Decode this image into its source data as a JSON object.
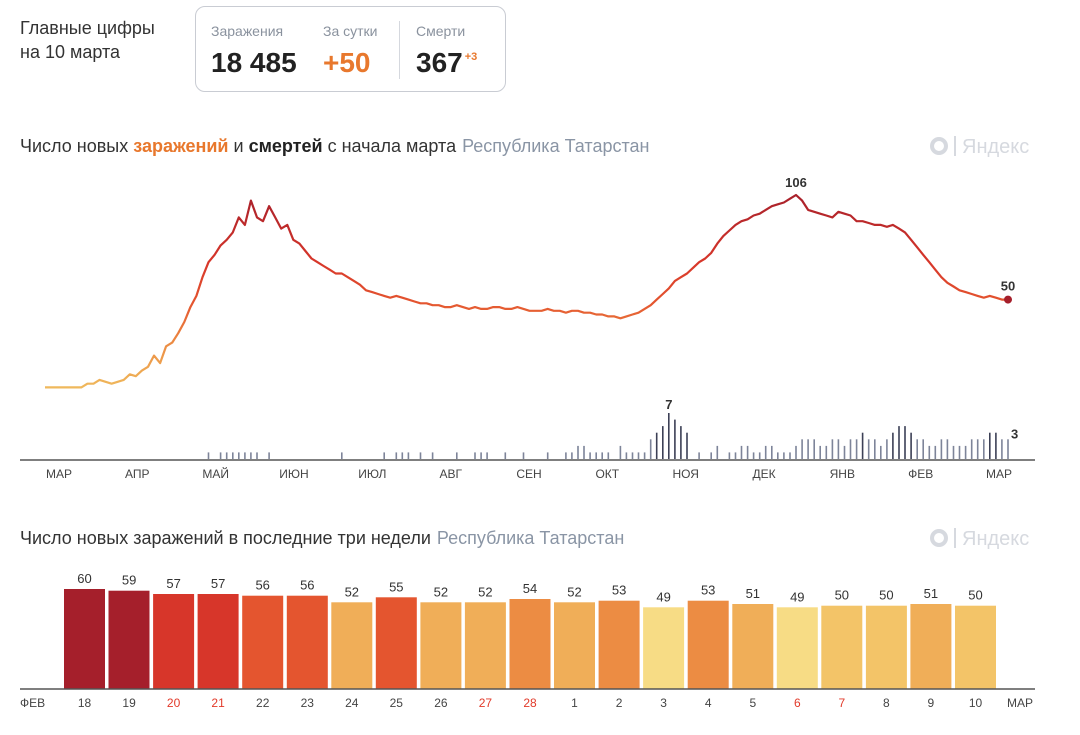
{
  "headline": {
    "line1": "Главные цифры",
    "line2": "на 10 марта"
  },
  "summary": {
    "infections_label": "Заражения",
    "infections_value": "18 485",
    "day_label": "За сутки",
    "day_value": "+50",
    "deaths_label": "Смерти",
    "deaths_value": "367",
    "deaths_delta": "+3"
  },
  "chart1_title": {
    "part1": "Число новых ",
    "hl1": "заражений",
    "part2": " и ",
    "hl2": "смертей",
    "part3": " с начала марта",
    "region": "Республика Татарстан"
  },
  "chart2_title": {
    "text": "Число новых заражений в последние три недели",
    "region": "Республика Татарстан"
  },
  "logo": {
    "text": "Яндекс",
    "icon": "yandex-logo-icon"
  },
  "colors": {
    "dark_red": "#a51f2b",
    "red": "#d7362a",
    "orange_red": "#e4552f",
    "orange": "#ec8c43",
    "light_orange": "#f0ae58",
    "pale": "#f7dc85",
    "axis": "#555555",
    "weekend": "#e23a2a",
    "deaths": "#7d8499"
  },
  "chart_data": [
    {
      "type": "line",
      "x_tick_labels": [
        "МАР",
        "АПР",
        "МАЙ",
        "ИЮН",
        "ИЮЛ",
        "АВГ",
        "СЕН",
        "ОКТ",
        "НОЯ",
        "ДЕК",
        "ЯНВ",
        "ФЕВ",
        "МАР"
      ],
      "series": [
        {
          "values": [
            3,
            3,
            3,
            3,
            3,
            3,
            3,
            5,
            5,
            7,
            6,
            5,
            6,
            7,
            10,
            9,
            12,
            14,
            20,
            16,
            25,
            27,
            32,
            38,
            46,
            52,
            62,
            70,
            74,
            79,
            82,
            86,
            94,
            90,
            103,
            94,
            92,
            100,
            94,
            88,
            90,
            82,
            80,
            76,
            72,
            70,
            68,
            66,
            64,
            64,
            62,
            60,
            58,
            55,
            54,
            53,
            52,
            51,
            52,
            51,
            50,
            49,
            48,
            48,
            47,
            47,
            46,
            46,
            47,
            46,
            45,
            46,
            45,
            45,
            46,
            46,
            45,
            45,
            46,
            45,
            44,
            44,
            44,
            45,
            44,
            44,
            43,
            44,
            44,
            43,
            43,
            42,
            42,
            41,
            41,
            40,
            41,
            42,
            43,
            45,
            47,
            50,
            53,
            56,
            60,
            62,
            64,
            67,
            70,
            72,
            75,
            80,
            84,
            87,
            90,
            92,
            93,
            95,
            96,
            98,
            100,
            101,
            102,
            104,
            106,
            103,
            98,
            97,
            96,
            95,
            94,
            97,
            96,
            95,
            92,
            92,
            91,
            90,
            90,
            89,
            90,
            88,
            86,
            82,
            78,
            74,
            70,
            66,
            62,
            59,
            57,
            55,
            54,
            53,
            52,
            51,
            52,
            51,
            50,
            50
          ]
        },
        {
          "type": "bar",
          "values": [
            0,
            0,
            0,
            0,
            0,
            0,
            0,
            0,
            0,
            0,
            0,
            0,
            0,
            0,
            0,
            0,
            0,
            0,
            0,
            0,
            0,
            0,
            0,
            0,
            0,
            0,
            0,
            1,
            0,
            1,
            1,
            1,
            1,
            1,
            1,
            1,
            0,
            1,
            0,
            0,
            0,
            0,
            0,
            0,
            0,
            0,
            0,
            0,
            0,
            1,
            0,
            0,
            0,
            0,
            0,
            0,
            1,
            0,
            1,
            1,
            1,
            0,
            1,
            0,
            1,
            0,
            0,
            0,
            1,
            0,
            0,
            1,
            1,
            1,
            0,
            0,
            1,
            0,
            0,
            1,
            0,
            0,
            0,
            1,
            0,
            0,
            1,
            1,
            2,
            2,
            1,
            1,
            1,
            1,
            0,
            2,
            1,
            1,
            1,
            1,
            3,
            4,
            5,
            7,
            6,
            5,
            4,
            0,
            1,
            0,
            1,
            2,
            0,
            1,
            1,
            2,
            2,
            1,
            1,
            2,
            2,
            1,
            1,
            1,
            2,
            3,
            3,
            3,
            2,
            2,
            3,
            3,
            2,
            3,
            3,
            4,
            3,
            3,
            2,
            3,
            4,
            5,
            5,
            4,
            3,
            3,
            2,
            2,
            3,
            3,
            2,
            2,
            2,
            3,
            3,
            3,
            4,
            4,
            3,
            3
          ]
        }
      ],
      "annotations": [
        {
          "label": "106"
        },
        {
          "label": "50"
        },
        {
          "label": "7"
        },
        {
          "label": "3"
        }
      ]
    },
    {
      "type": "bar",
      "edge_labels": [
        "ФЕВ",
        "МАР"
      ],
      "categories": [
        "18",
        "19",
        "20",
        "21",
        "22",
        "23",
        "24",
        "25",
        "26",
        "27",
        "28",
        "1",
        "2",
        "3",
        "4",
        "5",
        "6",
        "7",
        "8",
        "9",
        "10"
      ],
      "values": [
        60,
        59,
        57,
        57,
        56,
        56,
        52,
        55,
        52,
        52,
        54,
        52,
        53,
        49,
        53,
        51,
        49,
        50,
        50,
        51,
        50
      ],
      "weekend_categories": [
        "20",
        "21",
        "27",
        "28",
        "6",
        "7"
      ],
      "ylim": [
        0,
        60
      ]
    }
  ]
}
